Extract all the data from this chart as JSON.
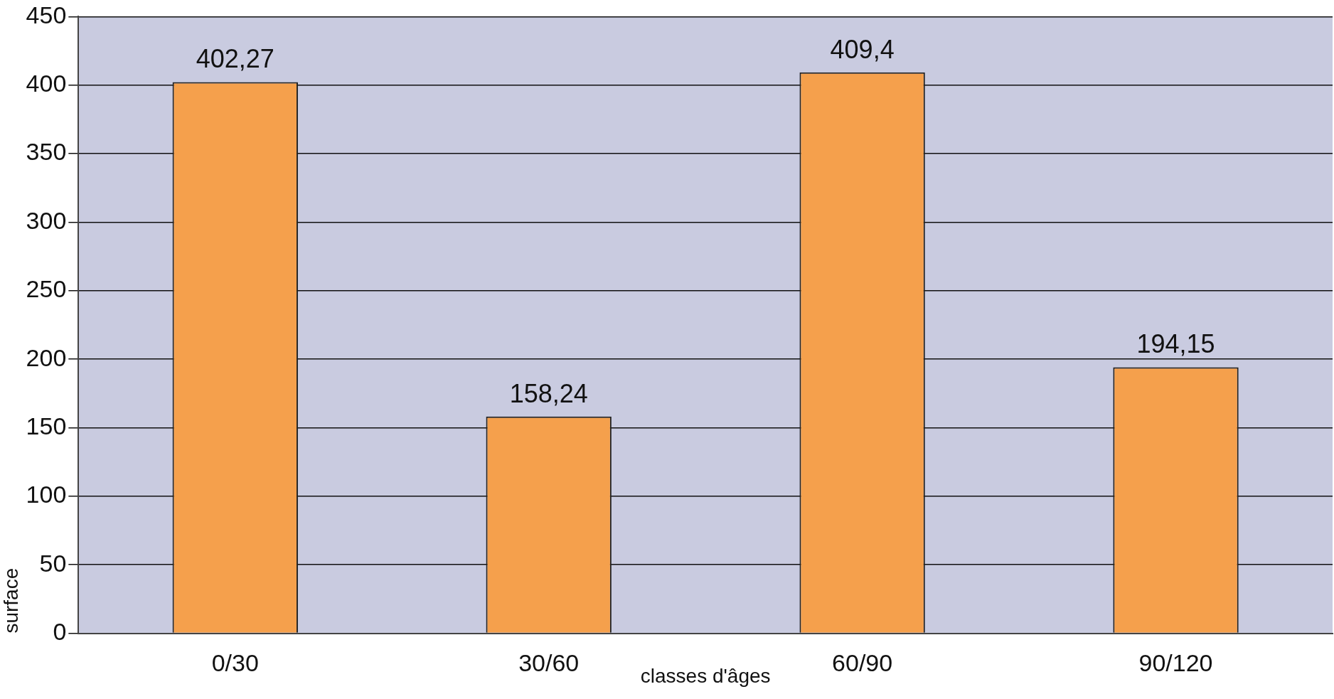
{
  "chart_data": {
    "type": "bar",
    "xlabel": "classes d'âges",
    "ylabel": "surface",
    "categories": [
      "0/30",
      "30/60",
      "60/90",
      "90/120"
    ],
    "values": [
      402.27,
      158.24,
      409.4,
      194.15
    ],
    "value_labels": [
      "402,27",
      "158,24",
      "409,4",
      "194,15"
    ],
    "color": "#f5a04c",
    "ylim": [
      0,
      450
    ],
    "yticks": [
      0,
      50,
      100,
      150,
      200,
      250,
      300,
      350,
      400,
      450
    ],
    "grid": "y",
    "legend": false
  }
}
